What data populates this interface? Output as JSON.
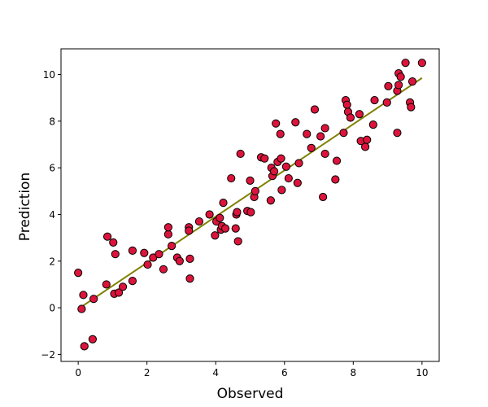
{
  "chart_data": {
    "type": "scatter",
    "title": "",
    "xlabel": "Observed",
    "ylabel": "Prediction",
    "xlim": [
      -0.5,
      10.5
    ],
    "ylim": [
      -2.3,
      11.1
    ],
    "xticks": [
      0,
      2,
      4,
      6,
      8,
      10
    ],
    "yticks": [
      -2,
      0,
      2,
      4,
      6,
      8,
      10
    ],
    "grid": false,
    "legend": "none",
    "colors": {
      "marker_fill": "#dc143c",
      "marker_edge": "#000000",
      "fit_line": "#808000"
    },
    "fit_line": {
      "x": [
        0,
        10
      ],
      "y": [
        -0.05,
        9.85
      ]
    },
    "points": [
      [
        0.0,
        1.5
      ],
      [
        0.1,
        -0.05
      ],
      [
        0.15,
        0.55
      ],
      [
        0.18,
        -1.65
      ],
      [
        0.42,
        -1.35
      ],
      [
        0.45,
        0.38
      ],
      [
        0.82,
        1.0
      ],
      [
        0.85,
        3.05
      ],
      [
        1.02,
        2.8
      ],
      [
        1.05,
        0.6
      ],
      [
        1.08,
        2.3
      ],
      [
        1.18,
        0.65
      ],
      [
        1.3,
        0.9
      ],
      [
        1.58,
        1.15
      ],
      [
        1.58,
        2.45
      ],
      [
        1.92,
        2.35
      ],
      [
        2.02,
        1.85
      ],
      [
        2.18,
        2.15
      ],
      [
        2.35,
        2.3
      ],
      [
        2.48,
        1.65
      ],
      [
        2.62,
        3.15
      ],
      [
        2.62,
        3.45
      ],
      [
        2.72,
        2.65
      ],
      [
        2.88,
        2.15
      ],
      [
        2.95,
        2.0
      ],
      [
        3.22,
        3.45
      ],
      [
        3.22,
        3.3
      ],
      [
        3.25,
        2.1
      ],
      [
        3.25,
        1.25
      ],
      [
        3.52,
        3.7
      ],
      [
        3.82,
        4.0
      ],
      [
        3.98,
        3.1
      ],
      [
        4.02,
        3.7
      ],
      [
        4.12,
        3.85
      ],
      [
        4.15,
        3.35
      ],
      [
        4.18,
        3.5
      ],
      [
        4.22,
        4.5
      ],
      [
        4.28,
        3.4
      ],
      [
        4.45,
        5.55
      ],
      [
        4.58,
        3.4
      ],
      [
        4.6,
        4.0
      ],
      [
        4.62,
        4.1
      ],
      [
        4.65,
        2.85
      ],
      [
        4.72,
        6.6
      ],
      [
        4.92,
        4.15
      ],
      [
        5.0,
        5.45
      ],
      [
        5.02,
        4.1
      ],
      [
        5.12,
        4.75
      ],
      [
        5.15,
        5.0
      ],
      [
        5.32,
        6.45
      ],
      [
        5.42,
        6.4
      ],
      [
        5.6,
        4.6
      ],
      [
        5.62,
        6.0
      ],
      [
        5.65,
        5.65
      ],
      [
        5.7,
        5.85
      ],
      [
        5.75,
        7.9
      ],
      [
        5.8,
        6.25
      ],
      [
        5.88,
        7.45
      ],
      [
        5.9,
        6.4
      ],
      [
        5.92,
        5.05
      ],
      [
        6.05,
        6.05
      ],
      [
        6.12,
        5.55
      ],
      [
        6.32,
        7.95
      ],
      [
        6.38,
        5.35
      ],
      [
        6.42,
        6.2
      ],
      [
        6.65,
        7.45
      ],
      [
        6.78,
        6.85
      ],
      [
        6.88,
        8.5
      ],
      [
        7.05,
        7.35
      ],
      [
        7.12,
        4.75
      ],
      [
        7.18,
        6.6
      ],
      [
        7.18,
        7.7
      ],
      [
        7.48,
        5.5
      ],
      [
        7.52,
        6.3
      ],
      [
        7.72,
        7.5
      ],
      [
        7.78,
        8.9
      ],
      [
        7.82,
        8.7
      ],
      [
        7.85,
        8.4
      ],
      [
        7.92,
        8.15
      ],
      [
        8.18,
        8.3
      ],
      [
        8.22,
        7.15
      ],
      [
        8.35,
        6.9
      ],
      [
        8.4,
        7.2
      ],
      [
        8.58,
        7.85
      ],
      [
        8.62,
        8.9
      ],
      [
        8.98,
        8.8
      ],
      [
        9.02,
        9.5
      ],
      [
        9.28,
        7.5
      ],
      [
        9.28,
        9.3
      ],
      [
        9.32,
        9.55
      ],
      [
        9.32,
        10.05
      ],
      [
        9.38,
        9.9
      ],
      [
        9.52,
        10.5
      ],
      [
        9.65,
        8.8
      ],
      [
        9.68,
        8.6
      ],
      [
        9.72,
        9.7
      ],
      [
        10.0,
        10.5
      ]
    ]
  }
}
